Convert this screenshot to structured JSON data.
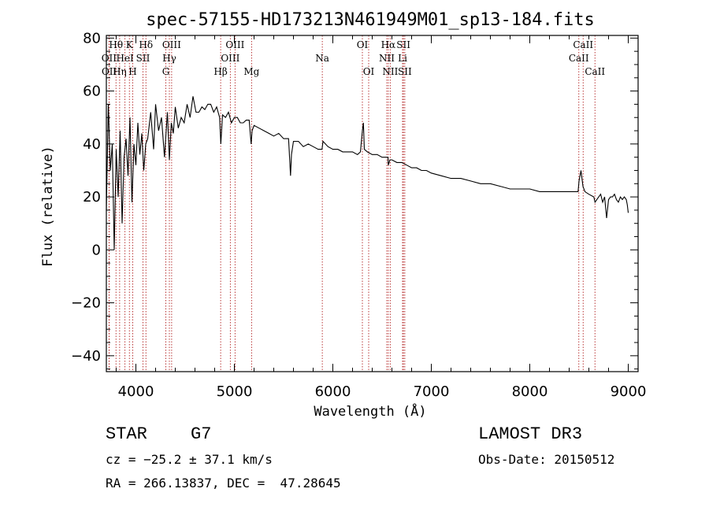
{
  "chart_data": {
    "type": "line",
    "title": "spec-57155-HD173213N461949M01_sp13-184.fits",
    "xlabel": "Wavelength (Å)",
    "ylabel": "Flux (relative)",
    "xlim": [
      3700,
      9100
    ],
    "ylim": [
      -46,
      81
    ],
    "xticks": [
      4000,
      5000,
      6000,
      7000,
      8000,
      9000
    ],
    "yticks": [
      -40,
      -20,
      0,
      20,
      40,
      60,
      80
    ],
    "series": [
      {
        "name": "flux",
        "x": [
          3700,
          3720,
          3740,
          3760,
          3780,
          3800,
          3820,
          3840,
          3860,
          3880,
          3900,
          3920,
          3940,
          3960,
          3980,
          4000,
          4020,
          4040,
          4060,
          4080,
          4100,
          4120,
          4150,
          4180,
          4200,
          4230,
          4260,
          4290,
          4320,
          4340,
          4360,
          4380,
          4400,
          4430,
          4460,
          4490,
          4520,
          4550,
          4580,
          4610,
          4640,
          4670,
          4700,
          4730,
          4760,
          4790,
          4820,
          4850,
          4862,
          4880,
          4910,
          4940,
          4970,
          5000,
          5030,
          5060,
          5090,
          5120,
          5150,
          5170,
          5180,
          5200,
          5250,
          5300,
          5350,
          5400,
          5450,
          5500,
          5550,
          5570,
          5580,
          5600,
          5650,
          5700,
          5750,
          5800,
          5850,
          5890,
          5900,
          5950,
          6000,
          6050,
          6100,
          6150,
          6200,
          6250,
          6280,
          6300,
          6310,
          6320,
          6350,
          6400,
          6450,
          6500,
          6540,
          6560,
          6563,
          6580,
          6600,
          6650,
          6700,
          6750,
          6800,
          6850,
          6900,
          6950,
          7000,
          7100,
          7200,
          7300,
          7400,
          7500,
          7600,
          7700,
          7800,
          7900,
          8000,
          8100,
          8200,
          8300,
          8400,
          8450,
          8490,
          8500,
          8520,
          8540,
          8560,
          8600,
          8650,
          8662,
          8700,
          8720,
          8740,
          8760,
          8780,
          8800,
          8820,
          8840,
          8860,
          8880,
          8900,
          8920,
          8940,
          8960,
          8980,
          8990,
          9000
        ],
        "y": [
          15,
          55,
          30,
          40,
          0,
          38,
          20,
          45,
          10,
          35,
          42,
          28,
          50,
          18,
          40,
          32,
          48,
          36,
          44,
          30,
          40,
          42,
          52,
          38,
          55,
          45,
          50,
          35,
          52,
          34,
          48,
          44,
          54,
          46,
          50,
          48,
          55,
          50,
          58,
          52,
          52,
          54,
          53,
          55,
          55,
          52,
          54,
          50,
          40,
          51,
          50,
          52,
          48,
          50,
          50,
          48,
          48,
          49,
          49,
          40,
          45,
          47,
          46,
          45,
          44,
          43,
          44,
          42,
          42,
          28,
          36,
          41,
          41,
          39,
          40,
          39,
          38,
          38,
          41,
          39,
          38,
          38,
          37,
          37,
          37,
          36,
          37,
          45,
          48,
          38,
          37,
          36,
          36,
          35,
          35,
          35,
          32,
          34,
          34,
          33,
          33,
          32,
          31,
          31,
          30,
          30,
          29,
          28,
          27,
          27,
          26,
          25,
          25,
          24,
          23,
          23,
          23,
          22,
          22,
          22,
          22,
          22,
          22,
          26,
          30,
          24,
          22,
          21,
          20,
          18,
          20,
          21,
          18,
          20,
          12,
          19,
          20,
          20,
          21,
          19,
          18,
          20,
          19,
          20,
          19,
          17,
          14
        ]
      }
    ],
    "spectral_lines": [
      {
        "name": "Hθ",
        "wavelength": 3798,
        "row": 1
      },
      {
        "name": "OII",
        "wavelength": 3727,
        "row": 2
      },
      {
        "name": "OII",
        "wavelength": 3729,
        "row": 3
      },
      {
        "name": "Hη",
        "wavelength": 3835,
        "row": 3
      },
      {
        "name": "HeI",
        "wavelength": 3889,
        "row": 2
      },
      {
        "name": "K",
        "wavelength": 3934,
        "row": 1
      },
      {
        "name": "H",
        "wavelength": 3968,
        "row": 3
      },
      {
        "name": "SII",
        "wavelength": 4072,
        "row": 2
      },
      {
        "name": "Hδ",
        "wavelength": 4102,
        "row": 1
      },
      {
        "name": "OIII",
        "wavelength": 4363,
        "row": 1
      },
      {
        "name": "Hγ",
        "wavelength": 4340,
        "row": 2
      },
      {
        "name": "G",
        "wavelength": 4304,
        "row": 3
      },
      {
        "name": "Hβ",
        "wavelength": 4861,
        "row": 3
      },
      {
        "name": "OIII",
        "wavelength": 4959,
        "row": 2
      },
      {
        "name": "OIII",
        "wavelength": 5007,
        "row": 1
      },
      {
        "name": "Mg",
        "wavelength": 5175,
        "row": 3
      },
      {
        "name": "Na",
        "wavelength": 5893,
        "row": 2
      },
      {
        "name": "OI",
        "wavelength": 6300,
        "row": 1
      },
      {
        "name": "OI",
        "wavelength": 6364,
        "row": 3
      },
      {
        "name": "Hα",
        "wavelength": 6563,
        "row": 1
      },
      {
        "name": "NII",
        "wavelength": 6548,
        "row": 2
      },
      {
        "name": "NII",
        "wavelength": 6583,
        "row": 3
      },
      {
        "name": "SII",
        "wavelength": 6717,
        "row": 1
      },
      {
        "name": "Li",
        "wavelength": 6708,
        "row": 2
      },
      {
        "name": "SII",
        "wavelength": 6731,
        "row": 3
      },
      {
        "name": "CaII",
        "wavelength": 8542,
        "row": 1
      },
      {
        "name": "CaII",
        "wavelength": 8498,
        "row": 2
      },
      {
        "name": "CaII",
        "wavelength": 8662,
        "row": 3
      }
    ],
    "line_color": "#b22222",
    "flux_color": "#000000"
  },
  "info": {
    "object_class": "STAR",
    "subclass": "G7",
    "survey": "LAMOST DR3",
    "cz": "cz = −25.2 ± 37.1 km/s",
    "obs_date": "Obs-Date: 20150512",
    "coords": "RA = 266.13837, DEC =  47.28645"
  }
}
